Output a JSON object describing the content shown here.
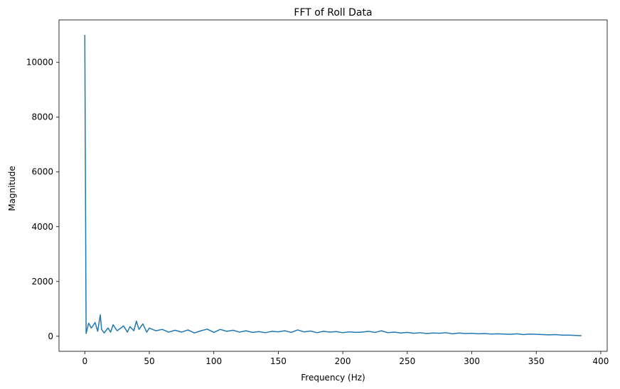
{
  "chart_data": {
    "type": "line",
    "title": "FFT of Roll Data",
    "xlabel": "Frequency (Hz)",
    "ylabel": "Magnitude",
    "xlim": [
      -20,
      405
    ],
    "ylim": [
      -550,
      11550
    ],
    "xticks": [
      0,
      50,
      100,
      150,
      200,
      250,
      300,
      350,
      400
    ],
    "yticks": [
      0,
      2000,
      4000,
      6000,
      8000,
      10000
    ],
    "grid": false,
    "line_color": "#1f77b4",
    "series": [
      {
        "x": [
          0,
          1,
          3,
          5,
          8,
          10,
          12,
          13,
          15,
          18,
          20,
          22,
          25,
          28,
          30,
          33,
          35,
          38,
          40,
          42,
          45,
          48,
          50,
          55,
          60,
          65,
          70,
          75,
          80,
          85,
          90,
          95,
          100,
          105,
          110,
          115,
          120,
          125,
          130,
          135,
          140,
          145,
          150,
          155,
          160,
          165,
          170,
          175,
          180,
          185,
          190,
          195,
          200,
          205,
          210,
          215,
          220,
          225,
          230,
          235,
          240,
          245,
          250,
          255,
          260,
          265,
          270,
          275,
          280,
          285,
          290,
          295,
          300,
          305,
          310,
          315,
          320,
          325,
          330,
          335,
          340,
          345,
          350,
          355,
          360,
          365,
          370,
          375,
          380,
          385
        ],
        "values": [
          11000,
          100,
          480,
          300,
          500,
          180,
          780,
          250,
          120,
          300,
          150,
          420,
          200,
          300,
          380,
          150,
          350,
          200,
          550,
          250,
          450,
          150,
          300,
          200,
          250,
          150,
          220,
          150,
          230,
          120,
          200,
          260,
          140,
          250,
          180,
          220,
          150,
          200,
          140,
          170,
          130,
          180,
          160,
          200,
          140,
          230,
          160,
          190,
          130,
          180,
          150,
          170,
          130,
          160,
          140,
          150,
          180,
          140,
          200,
          130,
          150,
          120,
          140,
          110,
          130,
          100,
          120,
          110,
          130,
          90,
          120,
          100,
          110,
          90,
          100,
          80,
          90,
          80,
          70,
          90,
          60,
          80,
          70,
          60,
          50,
          60,
          40,
          40,
          30,
          20
        ]
      }
    ]
  }
}
